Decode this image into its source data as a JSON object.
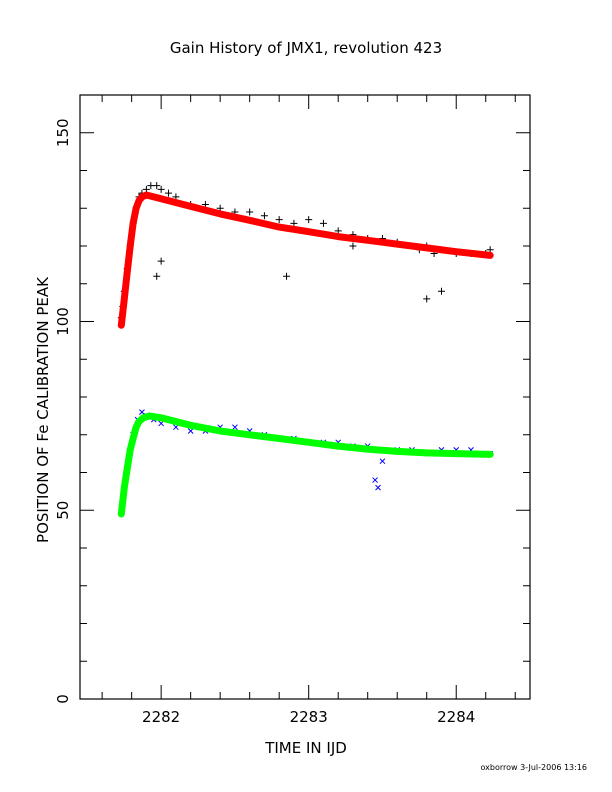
{
  "chart_data": {
    "type": "scatter",
    "title": "Gain History of JMX1, revolution 423",
    "xlabel": "TIME IN IJD",
    "ylabel": "POSITION OF Fe CALIBRATION PEAK",
    "xlim": [
      2281.45,
      2284.5
    ],
    "ylim": [
      0,
      160
    ],
    "x_ticks": [
      2282,
      2283,
      2284
    ],
    "x_tick_labels": [
      "2282",
      "2283",
      "2284"
    ],
    "y_ticks": [
      0,
      50,
      100,
      150
    ],
    "y_tick_labels": [
      "0",
      "50",
      "100",
      "150"
    ],
    "grid": false,
    "legend": "none",
    "footer": "oxborrow  3-Jul-2006 13:16",
    "series": [
      {
        "marker": "+",
        "color": "#000000",
        "x": [
          2281.73,
          2281.74,
          2281.75,
          2281.77,
          2281.79,
          2281.81,
          2281.83,
          2281.85,
          2281.87,
          2281.9,
          2281.93,
          2281.97,
          2282.0,
          2282.05,
          2282.1,
          2282.2,
          2282.3,
          2282.4,
          2282.5,
          2282.6,
          2282.7,
          2282.8,
          2282.9,
          2283.0,
          2283.1,
          2283.2,
          2283.3,
          2283.4,
          2283.5,
          2283.6,
          2283.7,
          2283.75,
          2283.8,
          2283.85,
          2283.9,
          2284.0,
          2284.1,
          2284.2,
          2284.23,
          2281.97,
          2282.0,
          2282.85,
          2283.3,
          2283.8,
          2283.9
        ],
        "values": [
          101,
          104,
          108,
          114,
          120,
          126,
          130,
          133,
          134,
          135,
          136,
          136,
          135,
          134,
          133,
          131,
          131,
          130,
          129,
          129,
          128,
          127,
          126,
          127,
          126,
          124,
          123,
          122,
          122,
          121,
          120,
          119,
          120,
          118,
          119,
          118,
          118,
          118,
          119,
          112,
          116,
          112,
          120,
          106,
          108
        ]
      },
      {
        "marker": "x",
        "color": "#0000ff",
        "x": [
          2281.73,
          2281.75,
          2281.77,
          2281.79,
          2281.81,
          2281.84,
          2281.87,
          2281.9,
          2281.95,
          2282.0,
          2282.1,
          2282.2,
          2282.3,
          2282.4,
          2282.5,
          2282.6,
          2282.7,
          2282.8,
          2282.9,
          2283.0,
          2283.1,
          2283.2,
          2283.3,
          2283.4,
          2283.45,
          2283.47,
          2283.5,
          2283.6,
          2283.7,
          2283.8,
          2283.9,
          2284.0,
          2284.1,
          2284.2,
          2284.23
        ],
        "values": [
          50,
          56,
          61,
          66,
          70,
          74,
          76,
          75,
          74,
          73,
          72,
          71,
          71,
          72,
          72,
          71,
          70,
          69,
          69,
          68,
          68,
          68,
          67,
          67,
          58,
          56,
          63,
          66,
          66,
          65,
          66,
          66,
          66,
          65,
          65
        ]
      },
      {
        "marker": "fit",
        "color": "#ff0000",
        "x": [
          2281.73,
          2281.75,
          2281.77,
          2281.79,
          2281.81,
          2281.83,
          2281.85,
          2281.87,
          2281.9,
          2281.95,
          2282.0,
          2282.2,
          2282.4,
          2282.6,
          2282.8,
          2283.0,
          2283.2,
          2283.4,
          2283.6,
          2283.8,
          2284.0,
          2284.23
        ],
        "values": [
          99,
          106,
          113,
          120,
          126,
          130,
          132,
          133,
          133.5,
          133,
          132.5,
          130.5,
          128.5,
          126.8,
          125,
          123.8,
          122.5,
          121.5,
          120.5,
          119.5,
          118.5,
          117.5
        ]
      },
      {
        "marker": "fit",
        "color": "#00ff00",
        "x": [
          2281.73,
          2281.75,
          2281.77,
          2281.79,
          2281.81,
          2281.83,
          2281.85,
          2281.88,
          2281.92,
          2282.0,
          2282.2,
          2282.4,
          2282.6,
          2282.8,
          2283.0,
          2283.2,
          2283.4,
          2283.6,
          2283.8,
          2284.0,
          2284.23
        ],
        "values": [
          49,
          56,
          61,
          66,
          69,
          72,
          73.5,
          74.5,
          75,
          74.5,
          72.5,
          71,
          70,
          69,
          68,
          67,
          66.2,
          65.6,
          65.2,
          65,
          64.8
        ]
      }
    ]
  }
}
